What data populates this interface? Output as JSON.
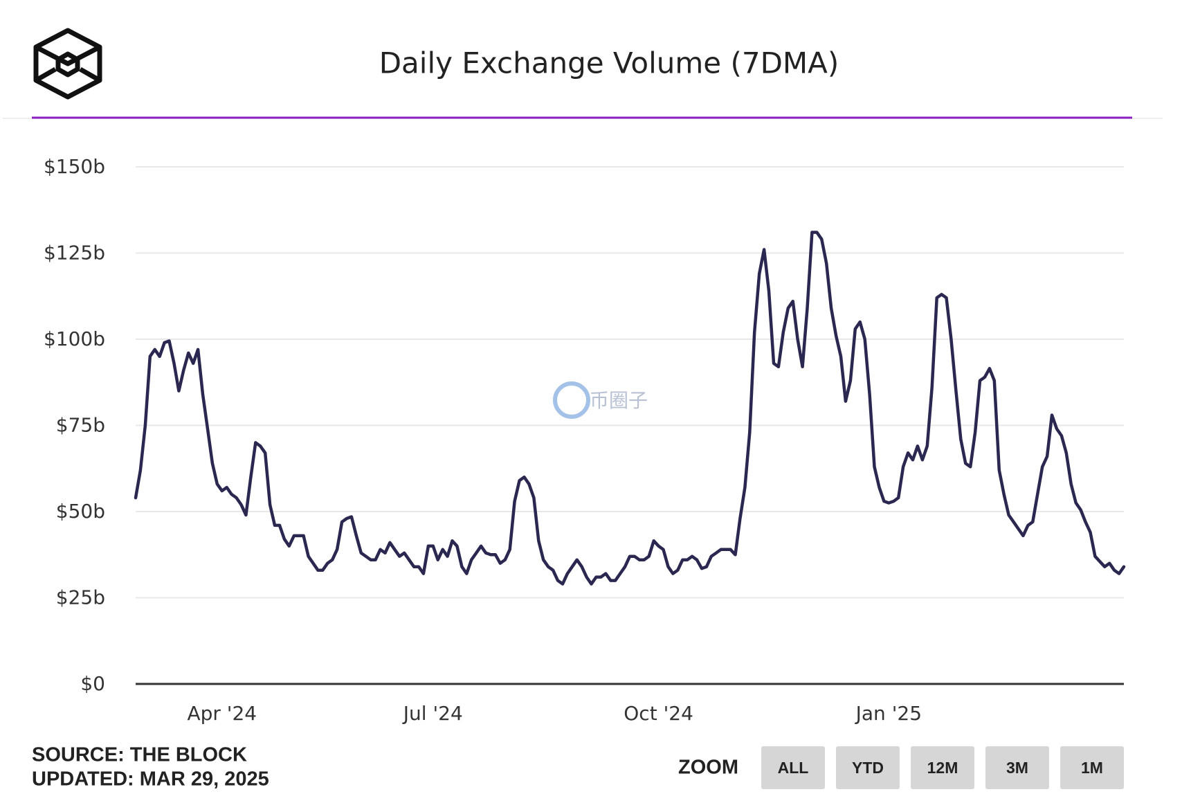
{
  "chart_data": {
    "type": "line",
    "title": "Daily Exchange Volume (7DMA)",
    "categories": [
      null,
      null,
      null,
      null,
      null,
      null,
      null,
      null,
      null,
      null,
      null,
      null,
      null,
      null,
      null,
      null,
      null,
      null,
      "Apr '24",
      null,
      null,
      null,
      null,
      null,
      null,
      null,
      null,
      null,
      null,
      null,
      null,
      null,
      null,
      null,
      null,
      null,
      null,
      null,
      null,
      null,
      null,
      null,
      null,
      null,
      null,
      null,
      null,
      null,
      null,
      null,
      null,
      null,
      null,
      null,
      null,
      null,
      null,
      null,
      null,
      null,
      null,
      null,
      "Jul '24",
      null,
      null,
      null,
      null,
      null,
      null,
      null,
      null,
      null,
      null,
      null,
      null,
      null,
      null,
      null,
      null,
      null,
      null,
      null,
      null,
      null,
      null,
      null,
      null,
      null,
      null,
      null,
      null,
      null,
      null,
      null,
      null,
      null,
      null,
      null,
      null,
      null,
      null,
      null,
      null,
      null,
      null,
      null,
      null,
      null,
      null,
      "Oct '24",
      null,
      null,
      null,
      null,
      null,
      null,
      null,
      null,
      null,
      null,
      null,
      null,
      null,
      null,
      null,
      null,
      null,
      null,
      null,
      null,
      null,
      null,
      null,
      null,
      null,
      null,
      null,
      null,
      null,
      null,
      null,
      null,
      null,
      null,
      null,
      null,
      null,
      null,
      null,
      null,
      null,
      null,
      null,
      null,
      null,
      null,
      null,
      "Jan '25",
      null,
      null,
      null,
      null,
      null,
      null,
      null,
      null,
      null,
      null,
      null,
      null,
      null,
      null,
      null,
      null,
      null,
      null,
      null,
      null,
      null,
      null,
      null,
      null,
      null,
      null,
      null,
      null,
      null,
      null,
      null,
      null,
      null,
      null,
      null,
      null,
      null,
      null,
      null,
      null,
      null,
      null,
      null,
      null,
      null,
      null,
      null,
      null,
      null
    ],
    "values": [
      54,
      62,
      75,
      95,
      97,
      95,
      99,
      99.5,
      93,
      85,
      91,
      96,
      93,
      97,
      84,
      74,
      64,
      58,
      56,
      57,
      55,
      54,
      52,
      49,
      60,
      70,
      69,
      67,
      52,
      46,
      46,
      42,
      40,
      43,
      43,
      43,
      37,
      35,
      33,
      33,
      35,
      36,
      39,
      47,
      48,
      48.5,
      43,
      38,
      37,
      36,
      36,
      39,
      38,
      41,
      39,
      37,
      38,
      36,
      34,
      34,
      32,
      40,
      40,
      36,
      39,
      37,
      41.5,
      40,
      34,
      32,
      36,
      38,
      40,
      38,
      37.5,
      37.5,
      35,
      36,
      39,
      53,
      59,
      60,
      58,
      54,
      41.5,
      36,
      34,
      33,
      30,
      29,
      32,
      34,
      36,
      34,
      31,
      29,
      31,
      31,
      32,
      30,
      30,
      32,
      34,
      37,
      37,
      36,
      36,
      37,
      41.5,
      40,
      39,
      34,
      32,
      33,
      36,
      36,
      37,
      36,
      33.5,
      34,
      37,
      38,
      39,
      39,
      39,
      37.5,
      48,
      57,
      73,
      102,
      119,
      126,
      114,
      93,
      92,
      102,
      109,
      111,
      100,
      92,
      109,
      131,
      131,
      129,
      122,
      109,
      101,
      95,
      82,
      88,
      103,
      105,
      100,
      84,
      63,
      57,
      53,
      52.5,
      53,
      54,
      63,
      67,
      65,
      69,
      65,
      69,
      86,
      112,
      113,
      112,
      100,
      85,
      71,
      64,
      63,
      73,
      88,
      89,
      91.5,
      88,
      62,
      55,
      49,
      47,
      45,
      43,
      46,
      47,
      55,
      63,
      66,
      78,
      74,
      72,
      67,
      58,
      52.5,
      50.5,
      47,
      44,
      37,
      35.5,
      34,
      35,
      33,
      32,
      34
    ],
    "color": "#2a2850",
    "ylim": [
      0,
      150
    ],
    "yticks": [
      {
        "value": 0,
        "label": "$0"
      },
      {
        "value": 25,
        "label": "$25b"
      },
      {
        "value": 50,
        "label": "$50b"
      },
      {
        "value": 75,
        "label": "$75b"
      },
      {
        "value": 100,
        "label": "$100b"
      },
      {
        "value": 125,
        "label": "$125b"
      },
      {
        "value": 150,
        "label": "$150b"
      }
    ],
    "grid": true
  },
  "watermark": "币圈子",
  "footer": {
    "source": "SOURCE: THE BLOCK",
    "updated": "UPDATED: MAR 29, 2025"
  },
  "zoom": {
    "label": "ZOOM",
    "buttons": [
      "ALL",
      "YTD",
      "12M",
      "3M",
      "1M"
    ]
  }
}
